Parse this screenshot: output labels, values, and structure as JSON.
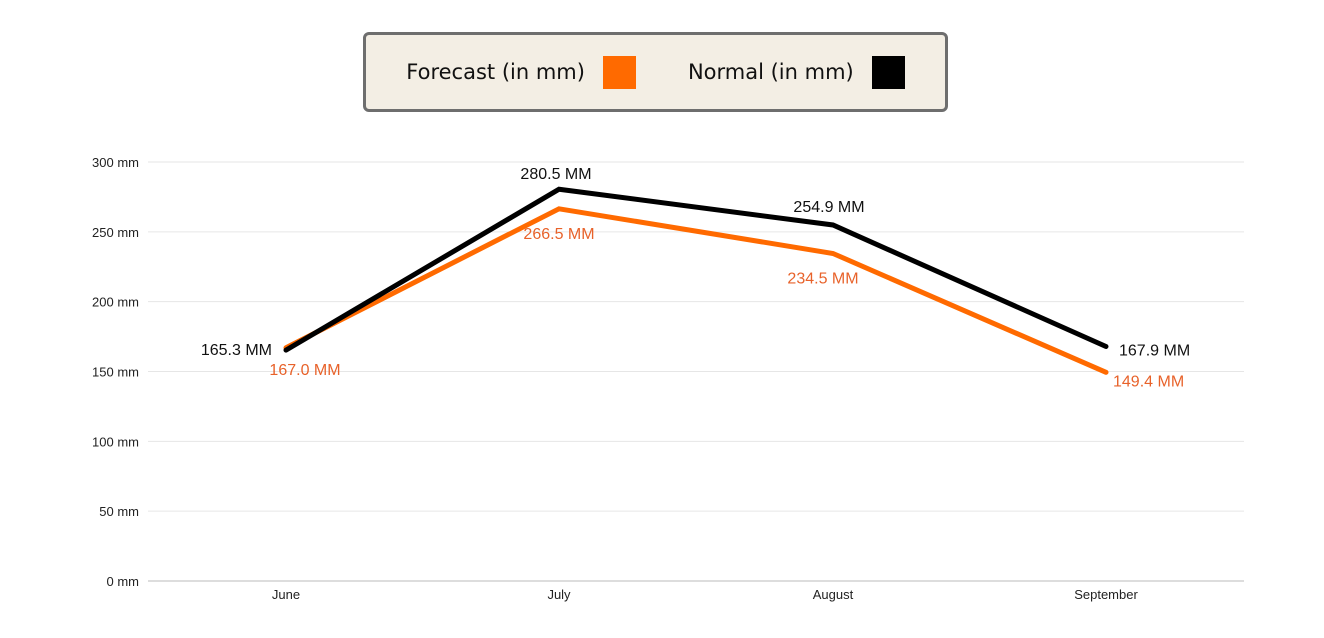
{
  "chart_data": {
    "type": "line",
    "title": "",
    "xlabel": "",
    "ylabel": "",
    "categories": [
      "June",
      "July",
      "August",
      "September"
    ],
    "ylim": [
      0,
      300
    ],
    "yticks": [
      0,
      50,
      100,
      150,
      200,
      250,
      300
    ],
    "ytick_labels": [
      "0 mm",
      "50 mm",
      "100 mm",
      "150 mm",
      "200 mm",
      "250 mm",
      "300 mm"
    ],
    "grid": true,
    "legend_placement": "top-center",
    "series": [
      {
        "name": "Forecast (in mm)",
        "color": "#ff6a00",
        "label_color": "#e8622a",
        "values": [
          167.0,
          266.5,
          234.5,
          149.4
        ],
        "labels": [
          "167.0 MM",
          "266.5 MM",
          "234.5 MM",
          "149.4 MM"
        ]
      },
      {
        "name": "Normal (in mm)",
        "color": "#000000",
        "label_color": "#111111",
        "values": [
          165.3,
          280.5,
          254.9,
          167.9
        ],
        "labels": [
          "165.3 MM",
          "280.5 MM",
          "254.9 MM",
          "167.9 MM"
        ]
      }
    ]
  }
}
